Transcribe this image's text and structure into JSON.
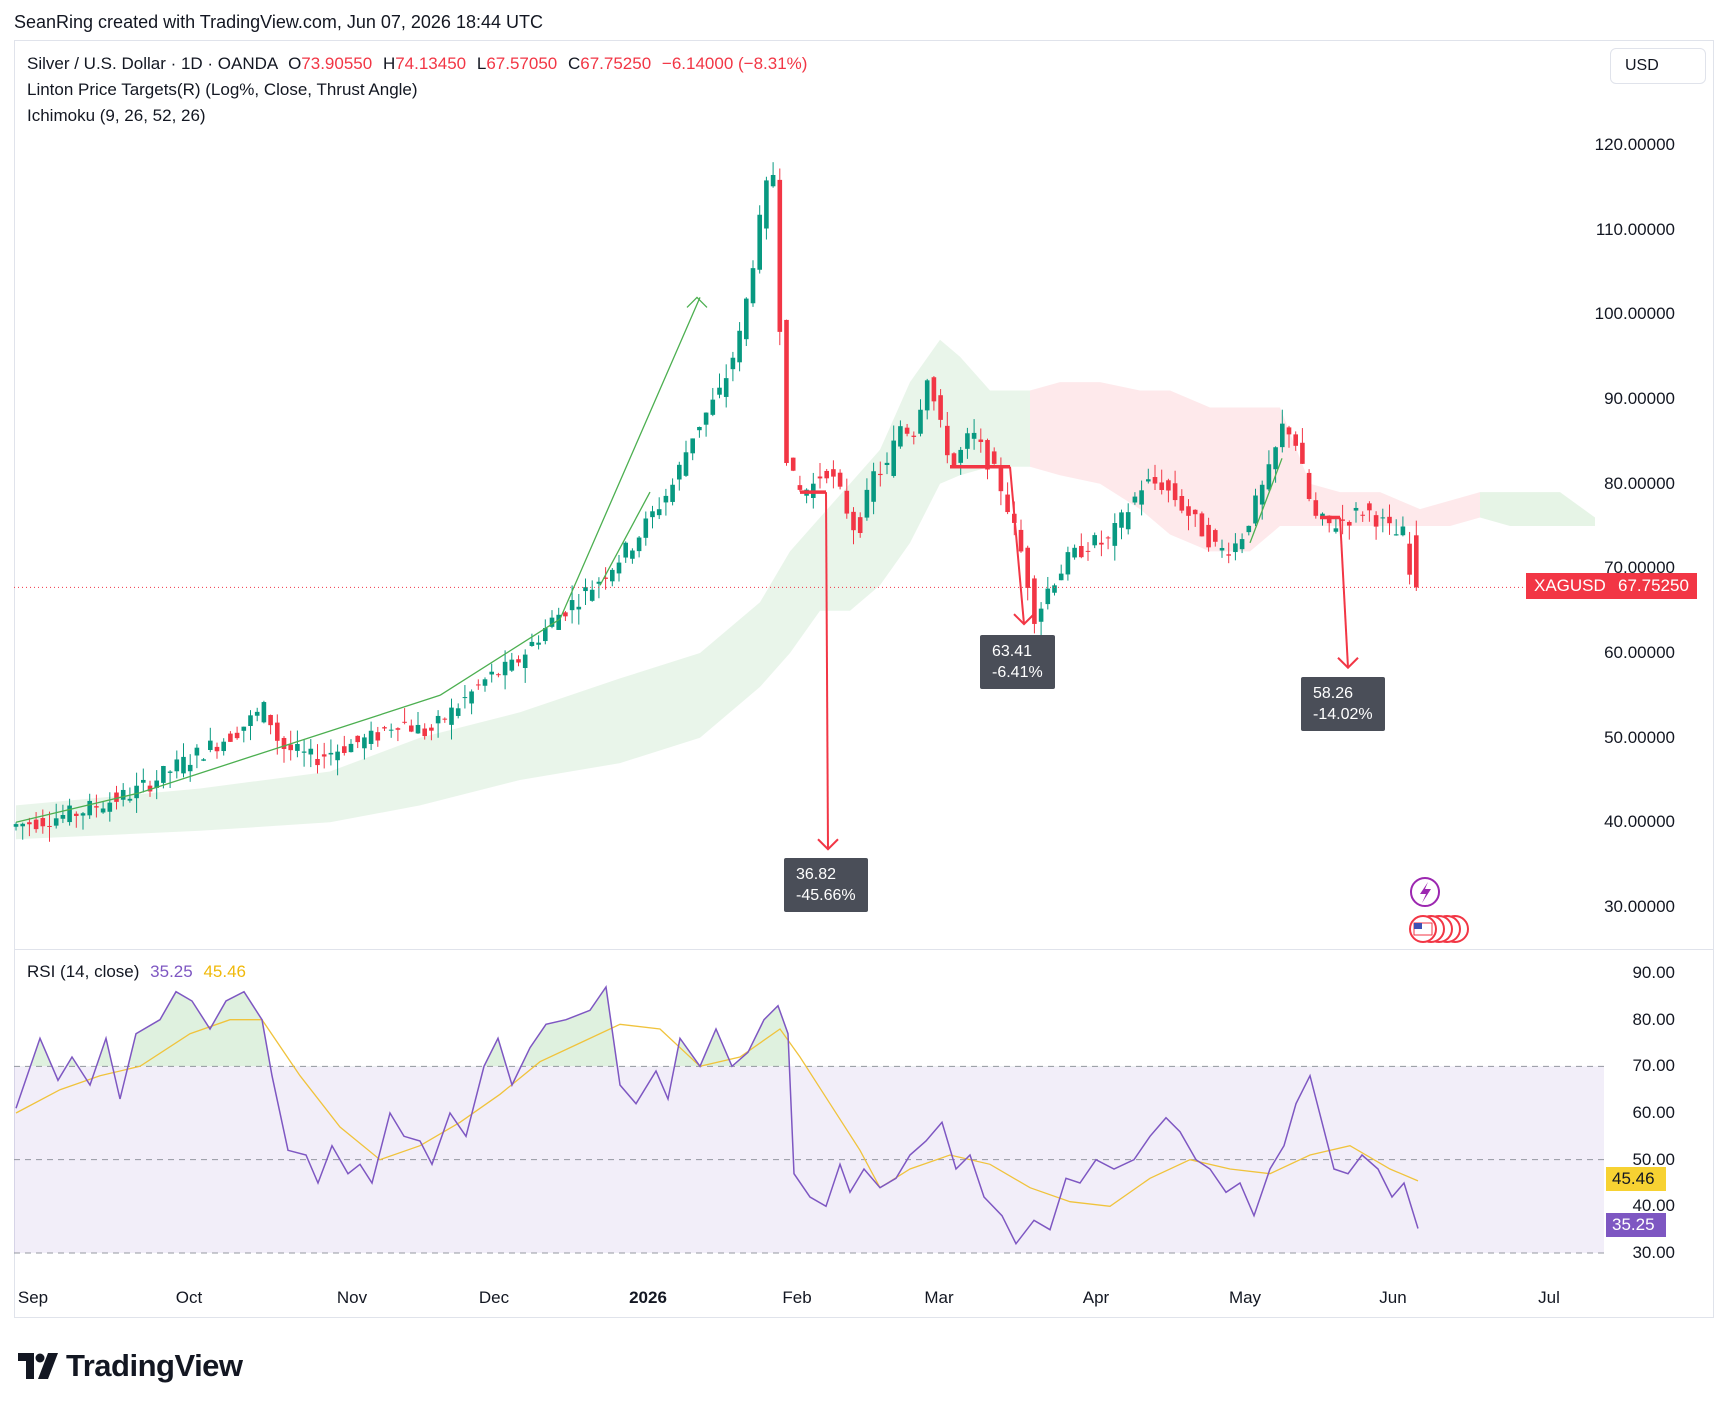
{
  "header": {
    "attribution": "SeanRing created with TradingView.com, Jun 07, 2026 18:44 UTC"
  },
  "legend": {
    "symbol": "Silver / U.S. Dollar · 1D · OANDA",
    "open_label": "O",
    "open": "73.90550",
    "high_label": "H",
    "high": "74.13450",
    "low_label": "L",
    "low": "67.57050",
    "close_label": "C",
    "close": "67.75250",
    "change": "−6.14000 (−8.31%)",
    "indicator1": "Linton Price Targets(R) (Log%, Close, Thrust Angle)",
    "indicator2": "Ichimoku (9, 26, 52, 26)"
  },
  "currency_button": "USD",
  "price_axis": {
    "labels": [
      "120.00000",
      "110.00000",
      "100.00000",
      "90.00000",
      "80.00000",
      "70.00000",
      "60.00000",
      "50.00000",
      "40.00000",
      "30.00000"
    ],
    "values": [
      120,
      110,
      100,
      90,
      80,
      70,
      60,
      50,
      40,
      30
    ]
  },
  "last_price": {
    "symbol": "XAGUSD",
    "value": "67.75250",
    "color": "#f23645"
  },
  "targets": [
    {
      "price": "36.82",
      "pct": "-45.66%"
    },
    {
      "price": "63.41",
      "pct": "-6.41%"
    },
    {
      "price": "58.26",
      "pct": "-14.02%"
    }
  ],
  "rsi": {
    "title": "RSI (14, close)",
    "value": "35.25",
    "ma_value": "45.46",
    "axis_labels": [
      "90.00",
      "80.00",
      "70.00",
      "60.00",
      "50.00",
      "40.00",
      "30.00"
    ],
    "axis_values": [
      90,
      80,
      70,
      60,
      50,
      40,
      30
    ],
    "overbought": 70,
    "middle": 50,
    "oversold": 30,
    "line_color": "#7e57c2",
    "ma_color": "#f0c33c"
  },
  "time_axis": {
    "labels": [
      "Sep",
      "Oct",
      "Nov",
      "Dec",
      "2026",
      "Feb",
      "Mar",
      "Apr",
      "May",
      "Jun",
      "Jul"
    ]
  },
  "colors": {
    "up": "#089981",
    "down": "#f23645",
    "target_line": "#f23645",
    "thrust": "#4caf50"
  },
  "chart_data": {
    "type": "candlestick",
    "title": "Silver / U.S. Dollar · 1D · OANDA",
    "ylim": [
      27,
      124
    ],
    "approx_close_path": [
      [
        "Sep",
        39.5
      ],
      [
        "Oct",
        47
      ],
      [
        "Oct mid",
        53
      ],
      [
        "Nov",
        49
      ],
      [
        "Nov mid",
        50
      ],
      [
        "Dec",
        57
      ],
      [
        "Dec mid",
        64
      ],
      [
        "2026",
        73
      ],
      [
        "Jan mid",
        90
      ],
      [
        "Jan end",
        117
      ],
      [
        "Feb",
        79
      ],
      [
        "Feb mid",
        83
      ],
      [
        "Mar",
        93
      ],
      [
        "Mar mid",
        81
      ],
      [
        "Mar end",
        64
      ],
      [
        "Apr",
        73
      ],
      [
        "Apr mid",
        81
      ],
      [
        "May",
        72
      ],
      [
        "May mid",
        88
      ],
      [
        "May end",
        76
      ],
      [
        "Jun",
        76
      ],
      [
        "Jun 7",
        67.75
      ]
    ],
    "last_close": 67.7525,
    "rsi_last": 35.25,
    "rsi_ma_last": 45.46
  }
}
